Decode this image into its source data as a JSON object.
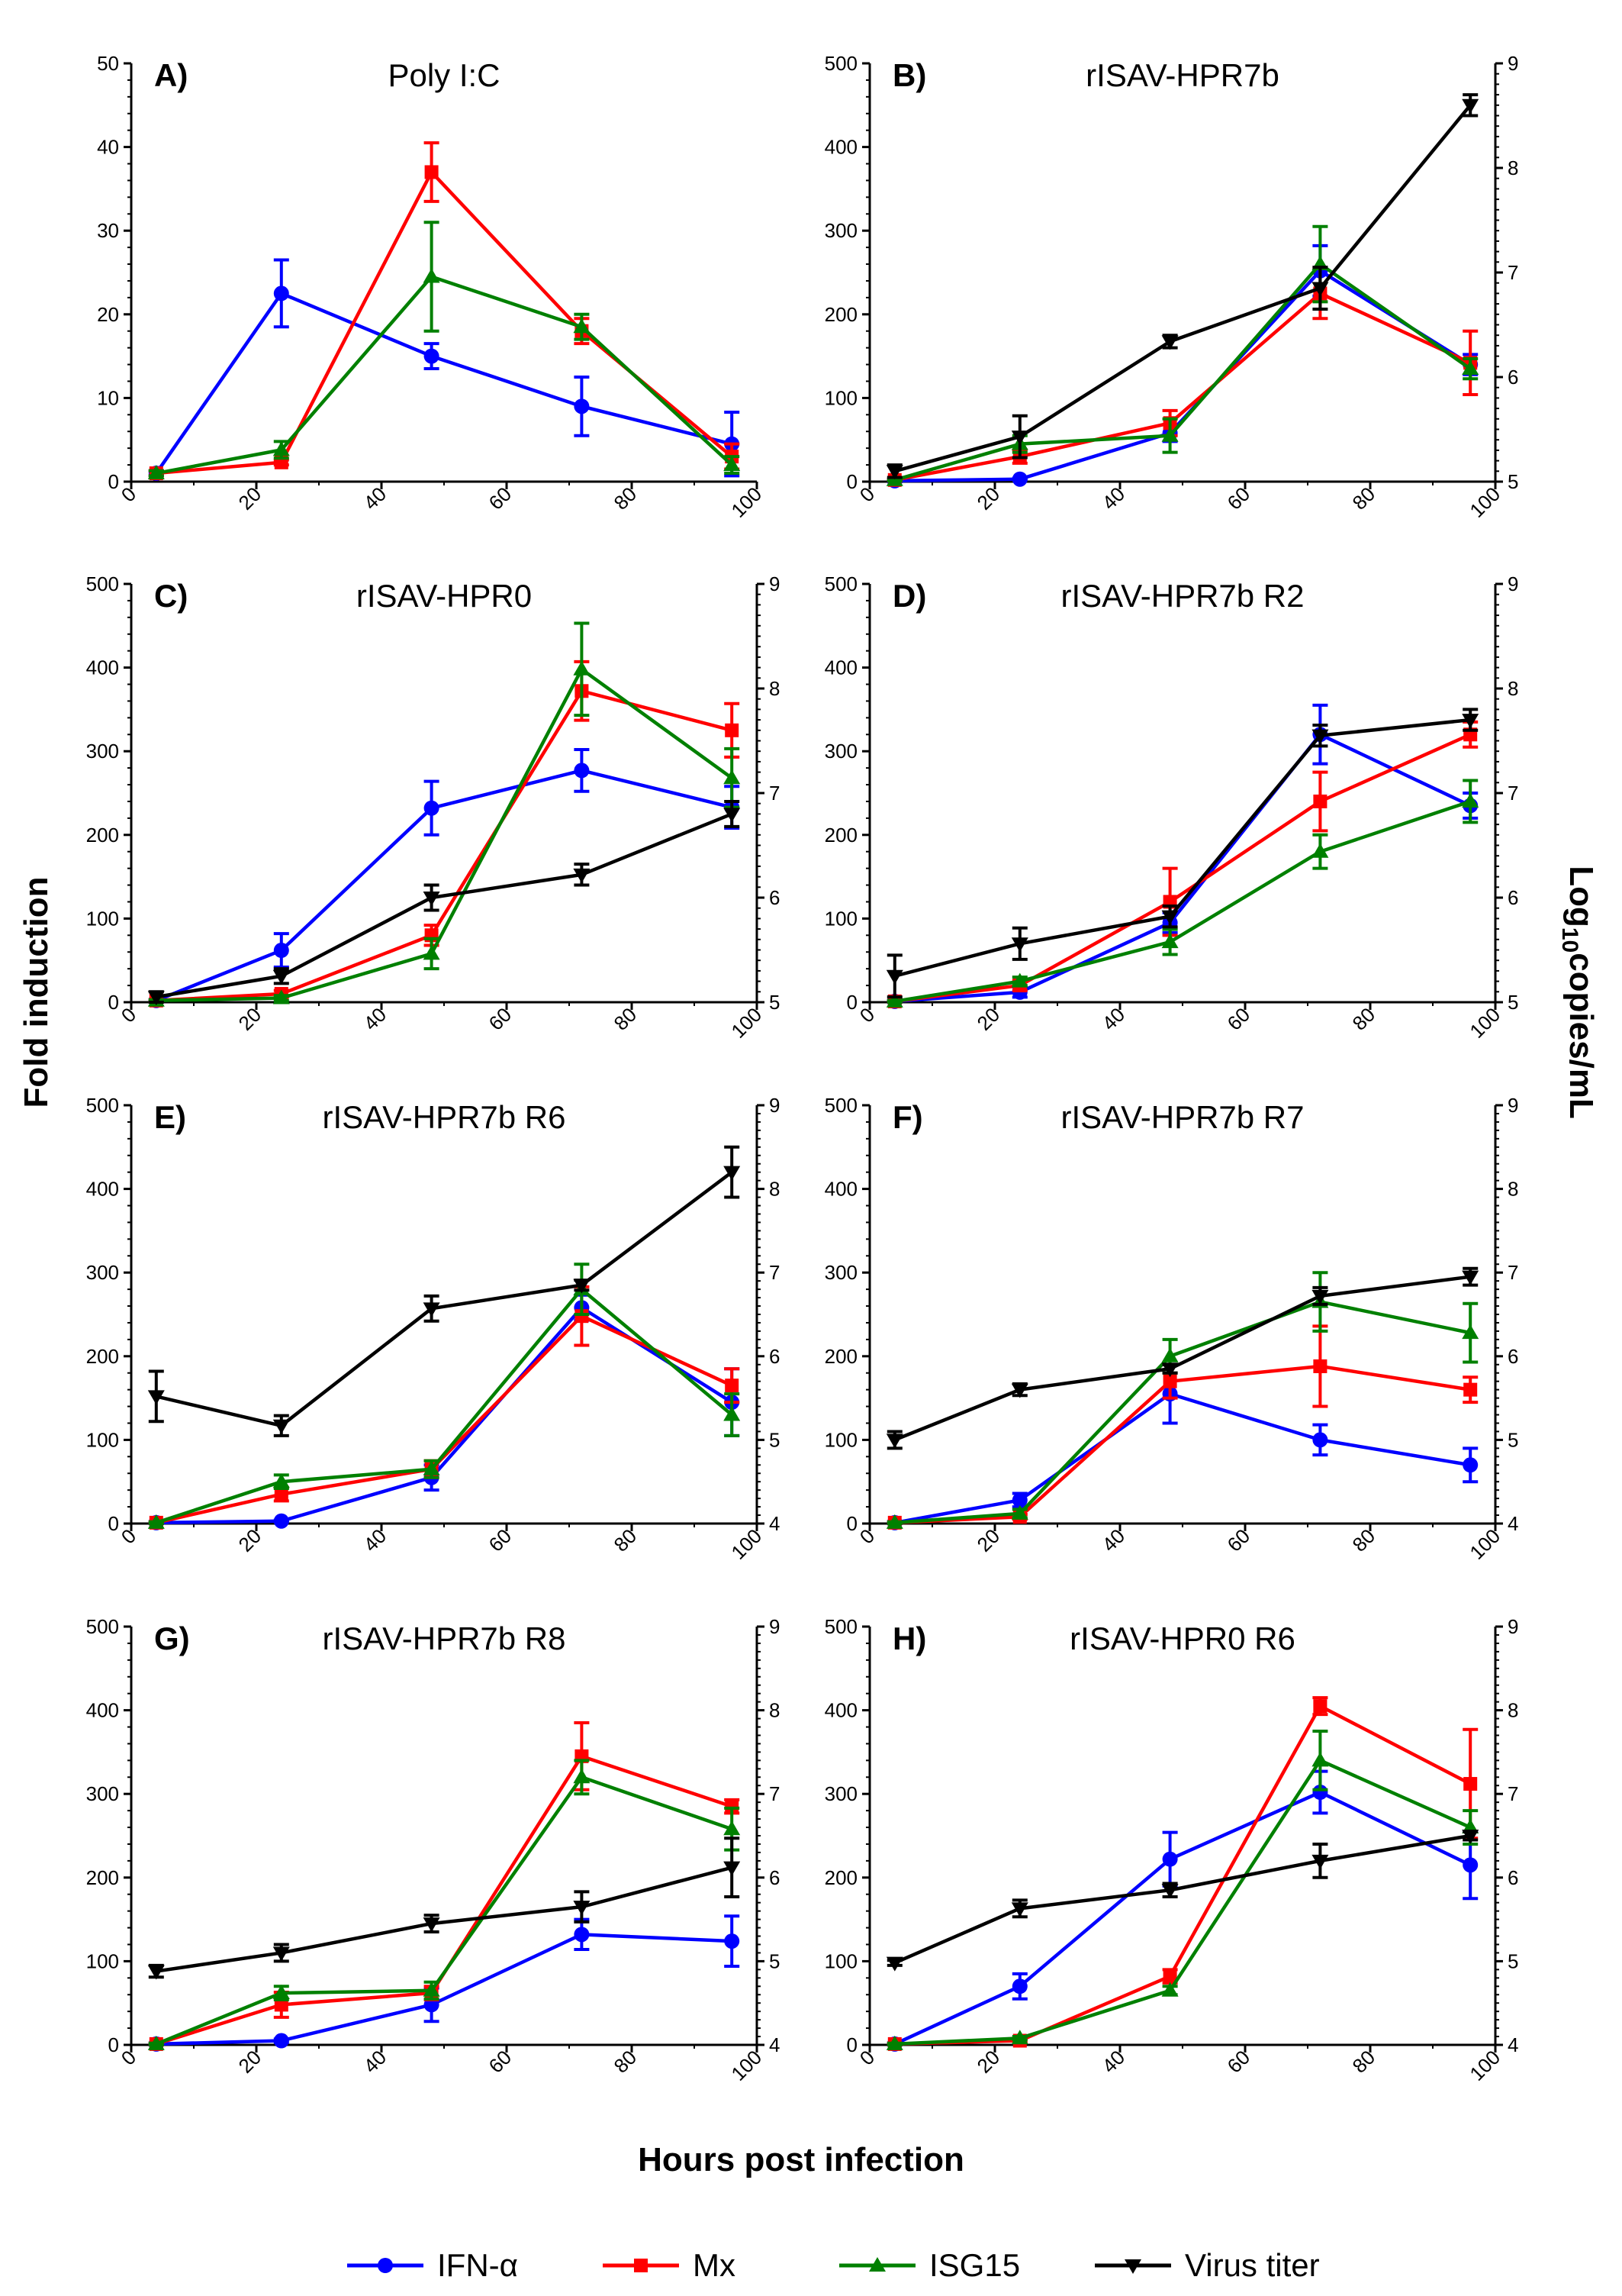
{
  "figure": {
    "ylabel_left": "Fold induction",
    "ylabel_right_main": "Log",
    "ylabel_right_sub": "10",
    "ylabel_right_rest": "copies/mL",
    "xlabel": "Hours post infection"
  },
  "legend": [
    {
      "key": "ifn",
      "label": "IFN-α",
      "color": "#0000ff",
      "marker": "circle"
    },
    {
      "key": "mx",
      "label": "Mx",
      "color": "#ff0000",
      "marker": "square"
    },
    {
      "key": "isg",
      "label": "ISG15",
      "color": "#008000",
      "marker": "triangle-up"
    },
    {
      "key": "virus",
      "label": "Virus titer",
      "color": "#000000",
      "marker": "triangle-down"
    }
  ],
  "chart_data": [
    {
      "type": "line",
      "panel": "A)",
      "title": "Poly I:C",
      "x": [
        4,
        24,
        48,
        72,
        96
      ],
      "xlim": [
        0,
        100
      ],
      "xticks": [
        0,
        20,
        40,
        60,
        80,
        100
      ],
      "ylim": [
        0,
        50
      ],
      "yticks": [
        0,
        10,
        20,
        30,
        40,
        50
      ],
      "series": [
        {
          "key": "ifn",
          "name": "IFN-α",
          "values": [
            1,
            22.5,
            15,
            9,
            4.5
          ],
          "errors": [
            0.3,
            4,
            1.5,
            3.5,
            3.8
          ]
        },
        {
          "key": "mx",
          "name": "Mx",
          "values": [
            1,
            2.3,
            37,
            18,
            3
          ],
          "errors": [
            0.3,
            0.3,
            3.5,
            1.5,
            1.5
          ]
        },
        {
          "key": "isg",
          "name": "ISG15",
          "values": [
            1,
            3.8,
            24.5,
            18.5,
            2
          ],
          "errors": [
            0.3,
            1,
            6.5,
            1.5,
            1
          ]
        }
      ]
    },
    {
      "type": "line",
      "panel": "B)",
      "title": "rISAV-HPR7b",
      "x": [
        4,
        24,
        48,
        72,
        96
      ],
      "xlim": [
        0,
        100
      ],
      "xticks": [
        0,
        20,
        40,
        60,
        80,
        100
      ],
      "ylim": [
        0,
        500
      ],
      "yticks": [
        0,
        100,
        200,
        300,
        400,
        500
      ],
      "y2lim": [
        5,
        9
      ],
      "y2ticks": [
        5,
        6,
        7,
        8,
        9
      ],
      "series": [
        {
          "key": "ifn",
          "name": "IFN-α",
          "values": [
            1,
            3,
            58,
            252,
            140
          ],
          "errors": [
            1,
            1,
            10,
            30,
            12
          ]
        },
        {
          "key": "mx",
          "name": "Mx",
          "values": [
            2,
            30,
            70,
            225,
            142
          ],
          "errors": [
            1,
            8,
            15,
            30,
            38
          ]
        },
        {
          "key": "isg",
          "name": "ISG15",
          "values": [
            2,
            45,
            55,
            260,
            135
          ],
          "errors": [
            1,
            10,
            20,
            45,
            12
          ]
        },
        {
          "key": "virus",
          "name": "Virus titer",
          "axis": "right",
          "values": [
            5.1,
            5.43,
            6.34,
            6.85,
            8.6
          ],
          "errors": [
            0.06,
            0.2,
            0.06,
            0.2,
            0.1
          ]
        }
      ]
    },
    {
      "type": "line",
      "panel": "C)",
      "title": "rISAV-HPR0",
      "x": [
        4,
        24,
        48,
        72,
        96
      ],
      "xlim": [
        0,
        100
      ],
      "xticks": [
        0,
        20,
        40,
        60,
        80,
        100
      ],
      "ylim": [
        0,
        500
      ],
      "yticks": [
        0,
        100,
        200,
        300,
        400,
        500
      ],
      "y2lim": [
        5,
        9
      ],
      "y2ticks": [
        5,
        6,
        7,
        8,
        9
      ],
      "series": [
        {
          "key": "ifn",
          "name": "IFN-α",
          "values": [
            2,
            62,
            232,
            277,
            233
          ],
          "errors": [
            1,
            20,
            32,
            25,
            25
          ]
        },
        {
          "key": "mx",
          "name": "Mx",
          "values": [
            2,
            10,
            80,
            372,
            325
          ],
          "errors": [
            1,
            4,
            12,
            35,
            32
          ]
        },
        {
          "key": "isg",
          "name": "ISG15",
          "values": [
            2,
            5,
            58,
            398,
            268
          ],
          "errors": [
            1,
            3,
            18,
            55,
            35
          ]
        },
        {
          "key": "virus",
          "name": "Virus titer",
          "axis": "right",
          "values": [
            5.05,
            5.25,
            6.0,
            6.22,
            6.8
          ],
          "errors": [
            0.05,
            0.07,
            0.12,
            0.1,
            0.12
          ]
        }
      ]
    },
    {
      "type": "line",
      "panel": "D)",
      "title": "rISAV-HPR7b R2",
      "x": [
        4,
        24,
        48,
        72,
        96
      ],
      "xlim": [
        0,
        100
      ],
      "xticks": [
        0,
        20,
        40,
        60,
        80,
        100
      ],
      "ylim": [
        0,
        500
      ],
      "yticks": [
        0,
        100,
        200,
        300,
        400,
        500
      ],
      "y2lim": [
        5,
        9
      ],
      "y2ticks": [
        5,
        6,
        7,
        8,
        9
      ],
      "series": [
        {
          "key": "ifn",
          "name": "IFN-α",
          "values": [
            1,
            12,
            95,
            320,
            235
          ],
          "errors": [
            1,
            6,
            12,
            35,
            15
          ]
        },
        {
          "key": "mx",
          "name": "Mx",
          "values": [
            1,
            20,
            120,
            240,
            320
          ],
          "errors": [
            1,
            6,
            40,
            35,
            15
          ]
        },
        {
          "key": "isg",
          "name": "ISG15",
          "values": [
            1,
            25,
            72,
            180,
            240
          ],
          "errors": [
            1,
            5,
            15,
            20,
            25
          ]
        },
        {
          "key": "virus",
          "name": "Virus titer",
          "axis": "right",
          "values": [
            5.25,
            5.56,
            5.82,
            7.55,
            7.7
          ],
          "errors": [
            0.2,
            0.15,
            0.1,
            0.1,
            0.1
          ]
        }
      ]
    },
    {
      "type": "line",
      "panel": "E)",
      "title": "rISAV-HPR7b R6",
      "x": [
        4,
        24,
        48,
        72,
        96
      ],
      "xlim": [
        0,
        100
      ],
      "xticks": [
        0,
        20,
        40,
        60,
        80,
        100
      ],
      "ylim": [
        0,
        500
      ],
      "yticks": [
        0,
        100,
        200,
        300,
        400,
        500
      ],
      "y2lim": [
        4,
        9
      ],
      "y2ticks": [
        4,
        5,
        6,
        7,
        8,
        9
      ],
      "series": [
        {
          "key": "ifn",
          "name": "IFN-α",
          "values": [
            1,
            3,
            55,
            258,
            145
          ],
          "errors": [
            1,
            1,
            15,
            15,
            40
          ]
        },
        {
          "key": "mx",
          "name": "Mx",
          "values": [
            1,
            35,
            65,
            248,
            165
          ],
          "errors": [
            1,
            8,
            10,
            35,
            20
          ]
        },
        {
          "key": "isg",
          "name": "ISG15",
          "values": [
            1,
            50,
            65,
            280,
            130
          ],
          "errors": [
            1,
            8,
            10,
            30,
            25
          ]
        },
        {
          "key": "virus",
          "name": "Virus titer",
          "axis": "right",
          "values": [
            5.52,
            5.17,
            6.57,
            6.85,
            8.2
          ],
          "errors": [
            0.3,
            0.12,
            0.15,
            0.06,
            0.3
          ]
        }
      ]
    },
    {
      "type": "line",
      "panel": "F)",
      "title": "rISAV-HPR7b R7",
      "x": [
        4,
        24,
        48,
        72,
        96
      ],
      "xlim": [
        0,
        100
      ],
      "xticks": [
        0,
        20,
        40,
        60,
        80,
        100
      ],
      "ylim": [
        0,
        500
      ],
      "yticks": [
        0,
        100,
        200,
        300,
        400,
        500
      ],
      "y2lim": [
        4,
        9
      ],
      "y2ticks": [
        4,
        5,
        6,
        7,
        8,
        9
      ],
      "series": [
        {
          "key": "ifn",
          "name": "IFN-α",
          "values": [
            1,
            28,
            155,
            100,
            70
          ],
          "errors": [
            1,
            8,
            35,
            18,
            20
          ]
        },
        {
          "key": "mx",
          "name": "Mx",
          "values": [
            1,
            8,
            170,
            188,
            160
          ],
          "errors": [
            1,
            3,
            20,
            48,
            15
          ]
        },
        {
          "key": "isg",
          "name": "ISG15",
          "values": [
            1,
            12,
            200,
            265,
            228
          ],
          "errors": [
            1,
            5,
            20,
            35,
            35
          ]
        },
        {
          "key": "virus",
          "name": "Virus titer",
          "axis": "right",
          "values": [
            5.0,
            5.6,
            5.85,
            6.72,
            6.95
          ],
          "errors": [
            0.1,
            0.07,
            0.05,
            0.1,
            0.1
          ]
        }
      ]
    },
    {
      "type": "line",
      "panel": "G)",
      "title": "rISAV-HPR7b R8",
      "x": [
        4,
        24,
        48,
        72,
        96
      ],
      "xlim": [
        0,
        100
      ],
      "xticks": [
        0,
        20,
        40,
        60,
        80,
        100
      ],
      "ylim": [
        0,
        500
      ],
      "yticks": [
        0,
        100,
        200,
        300,
        400,
        500
      ],
      "y2lim": [
        4,
        9
      ],
      "y2ticks": [
        4,
        5,
        6,
        7,
        8,
        9
      ],
      "series": [
        {
          "key": "ifn",
          "name": "IFN-α",
          "values": [
            1,
            5,
            48,
            132,
            124
          ],
          "errors": [
            1,
            2,
            20,
            18,
            30
          ]
        },
        {
          "key": "mx",
          "name": "Mx",
          "values": [
            1,
            48,
            62,
            345,
            285
          ],
          "errors": [
            1,
            15,
            8,
            40,
            8
          ]
        },
        {
          "key": "isg",
          "name": "ISG15",
          "values": [
            1,
            62,
            65,
            320,
            258
          ],
          "errors": [
            1,
            8,
            10,
            20,
            25
          ]
        },
        {
          "key": "virus",
          "name": "Virus titer",
          "axis": "right",
          "values": [
            4.88,
            5.1,
            5.45,
            5.65,
            6.12
          ],
          "errors": [
            0.07,
            0.1,
            0.1,
            0.18,
            0.35
          ]
        }
      ]
    },
    {
      "type": "line",
      "panel": "H)",
      "title": "rISAV-HPR0 R6",
      "x": [
        4,
        24,
        48,
        72,
        96
      ],
      "xlim": [
        0,
        100
      ],
      "xticks": [
        0,
        20,
        40,
        60,
        80,
        100
      ],
      "ylim": [
        0,
        500
      ],
      "yticks": [
        0,
        100,
        200,
        300,
        400,
        500
      ],
      "y2lim": [
        4,
        9
      ],
      "y2ticks": [
        4,
        5,
        6,
        7,
        8,
        9
      ],
      "series": [
        {
          "key": "ifn",
          "name": "IFN-α",
          "values": [
            1,
            70,
            222,
            302,
            215
          ],
          "errors": [
            1,
            15,
            32,
            25,
            40
          ]
        },
        {
          "key": "mx",
          "name": "Mx",
          "values": [
            1,
            5,
            82,
            405,
            312
          ],
          "errors": [
            1,
            2,
            8,
            10,
            65
          ]
        },
        {
          "key": "isg",
          "name": "ISG15",
          "values": [
            1,
            8,
            65,
            340,
            260
          ],
          "errors": [
            1,
            2,
            5,
            35,
            20
          ]
        },
        {
          "key": "virus",
          "name": "Virus titer",
          "axis": "right",
          "values": [
            4.98,
            5.63,
            5.85,
            6.2,
            6.5
          ],
          "errors": [
            0.03,
            0.1,
            0.08,
            0.2,
            0.05
          ]
        }
      ]
    }
  ]
}
